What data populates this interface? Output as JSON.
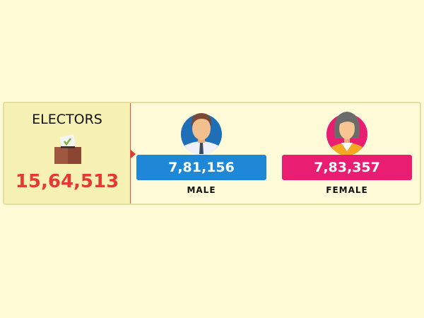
{
  "electors": {
    "title": "ELECTORS",
    "total": "15,64,513",
    "icon": "ballot-box-icon"
  },
  "male": {
    "count": "7,81,156",
    "label": "MALE",
    "color": "#1e88d6",
    "icon": "male-avatar-icon"
  },
  "female": {
    "count": "7,83,357",
    "label": "FEMALE",
    "color": "#e91e73",
    "icon": "female-avatar-icon"
  }
}
